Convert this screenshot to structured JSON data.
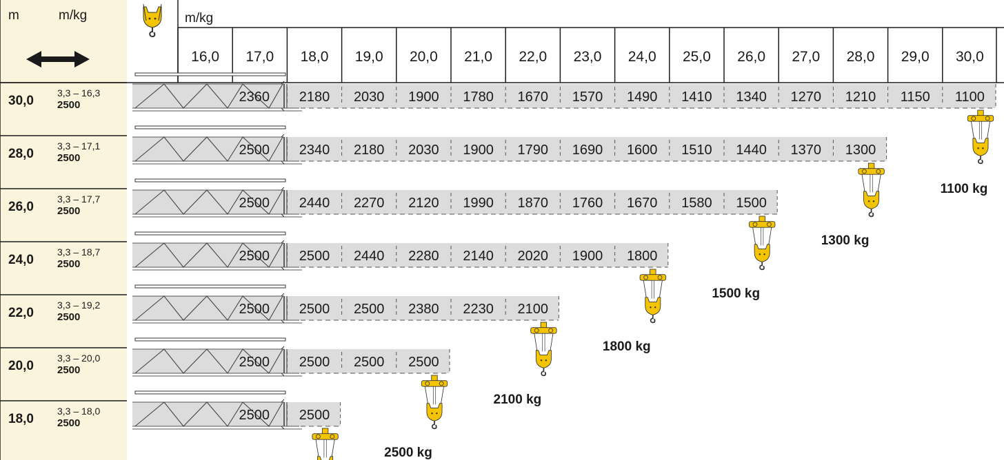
{
  "header": {
    "left_unit_label": "m",
    "left_load_label": "m/kg",
    "right_load_label": "m/kg"
  },
  "colors": {
    "label_panel": "#fbf4dc",
    "jib_fill": "#dcdcdc",
    "hook_yellow": "#f5c400",
    "grid_line": "#1a1a1a"
  },
  "icons": {
    "radius_arrow": "double-arrow-icon",
    "hook": "crane-hook-icon"
  },
  "chart_data": {
    "type": "table",
    "columns": [
      "16,0",
      "17,0",
      "18,0",
      "19,0",
      "20,0",
      "21,0",
      "22,0",
      "23,0",
      "24,0",
      "25,0",
      "26,0",
      "27,0",
      "28,0",
      "29,0",
      "30,0"
    ],
    "rows": [
      {
        "jib": "30,0",
        "range": "3,3 – 16,3",
        "max_load": "2500",
        "values": [
          "2360",
          "2180",
          "2030",
          "1900",
          "1780",
          "1670",
          "1570",
          "1490",
          "1410",
          "1340",
          "1270",
          "1210",
          "1150",
          "1100"
        ],
        "tip_load": "1100 kg"
      },
      {
        "jib": "28,0",
        "range": "3,3 – 17,1",
        "max_load": "2500",
        "values": [
          "2500",
          "2340",
          "2180",
          "2030",
          "1900",
          "1790",
          "1690",
          "1600",
          "1510",
          "1440",
          "1370",
          "1300"
        ],
        "tip_load": "1300 kg"
      },
      {
        "jib": "26,0",
        "range": "3,3 – 17,7",
        "max_load": "2500",
        "values": [
          "2500",
          "2440",
          "2270",
          "2120",
          "1990",
          "1870",
          "1760",
          "1670",
          "1580",
          "1500"
        ],
        "tip_load": "1500 kg"
      },
      {
        "jib": "24,0",
        "range": "3,3 – 18,7",
        "max_load": "2500",
        "values": [
          "2500",
          "2500",
          "2440",
          "2280",
          "2140",
          "2020",
          "1900",
          "1800"
        ],
        "tip_load": "1800 kg"
      },
      {
        "jib": "22,0",
        "range": "3,3 – 19,2",
        "max_load": "2500",
        "values": [
          "2500",
          "2500",
          "2500",
          "2380",
          "2230",
          "2100"
        ],
        "tip_load": "2100 kg"
      },
      {
        "jib": "20,0",
        "range": "3,3 – 20,0",
        "max_load": "2500",
        "values": [
          "2500",
          "2500",
          "2500",
          "2500"
        ],
        "tip_load": "2500 kg"
      },
      {
        "jib": "18,0",
        "range": "3,3 – 18,0",
        "max_load": "2500",
        "values": [
          "2500",
          "2500"
        ],
        "tip_load": ""
      }
    ]
  }
}
